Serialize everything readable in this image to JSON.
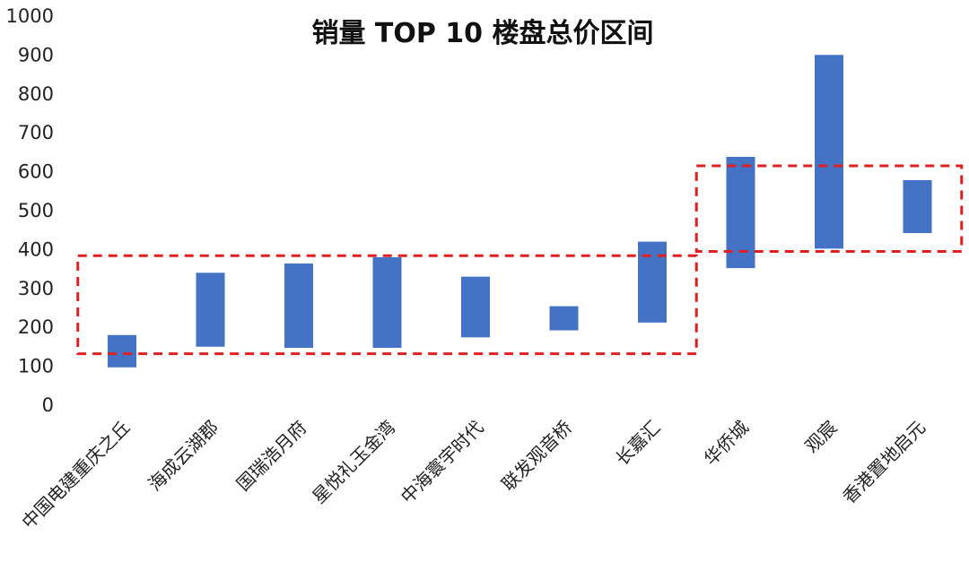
{
  "chart_data": {
    "type": "bar",
    "subtype": "floating-range",
    "title": "销量 TOP 10 楼盘总价区间",
    "xlabel": "",
    "ylabel": "",
    "ylim": [
      0,
      1000
    ],
    "yticks": [
      0,
      100,
      200,
      300,
      400,
      500,
      600,
      700,
      800,
      900,
      1000
    ],
    "grid": false,
    "legend": "none",
    "bar_color": "#4472C4",
    "highlight_color": "#E02020",
    "categories": [
      "中国电建重庆之丘",
      "海成云湖郡",
      "国瑞浩月府",
      "星悦礼玉金湾",
      "中海寰宇时代",
      "联发观音桥",
      "长嘉汇",
      "华侨城",
      "观宸",
      "香港置地启元"
    ],
    "series": [
      {
        "low": [
          95,
          148,
          145,
          145,
          172,
          190,
          210,
          350,
          400,
          440
        ],
        "high": [
          178,
          338,
          362,
          378,
          328,
          252,
          418,
          636,
          898,
          576
        ]
      }
    ],
    "highlight_groups": [
      {
        "from_category": 0,
        "to_category": 6,
        "y_range": [
          130,
          382
        ]
      },
      {
        "from_category": 7,
        "to_category": 9,
        "y_range": [
          393,
          613
        ]
      }
    ]
  }
}
